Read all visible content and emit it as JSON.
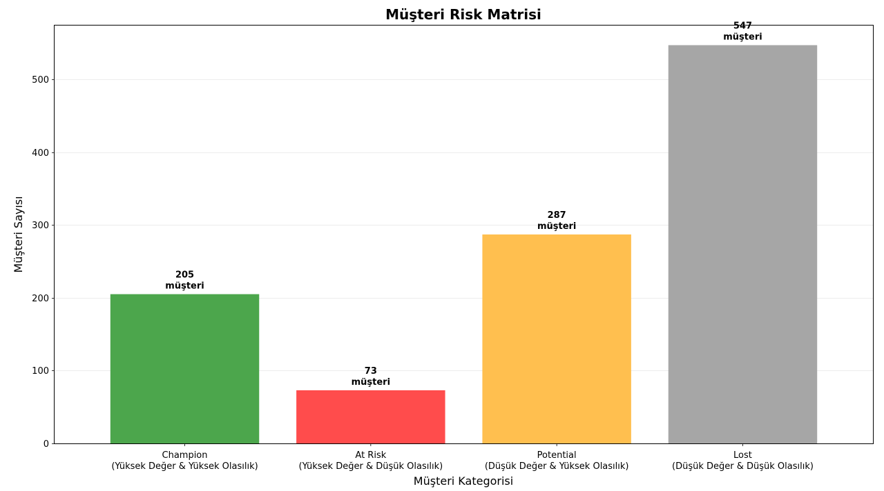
{
  "chart_data": {
    "type": "bar",
    "title": "Müşteri Risk Matrisi",
    "xlabel": "Müşteri Kategorisi",
    "ylabel": "Müşteri Sayısı",
    "categories": [
      [
        "Champion",
        "(Yüksek Değer & Yüksek Olasılık)"
      ],
      [
        "At Risk",
        "(Yüksek Değer & Düşük Olasılık)"
      ],
      [
        "Potential",
        "(Düşük Değer & Yüksek Olasılık)"
      ],
      [
        "Lost",
        "(Düşük Değer & Düşük Olasılık)"
      ]
    ],
    "values": [
      205,
      73,
      287,
      547
    ],
    "colors": [
      "#4ca64c",
      "#ff4c4c",
      "#ffbf4f",
      "#a6a6a6"
    ],
    "value_suffix": "müşteri",
    "ylim": [
      0,
      574
    ],
    "yticks": [
      0,
      100,
      200,
      300,
      400,
      500
    ],
    "grid": true,
    "legend": "none"
  }
}
